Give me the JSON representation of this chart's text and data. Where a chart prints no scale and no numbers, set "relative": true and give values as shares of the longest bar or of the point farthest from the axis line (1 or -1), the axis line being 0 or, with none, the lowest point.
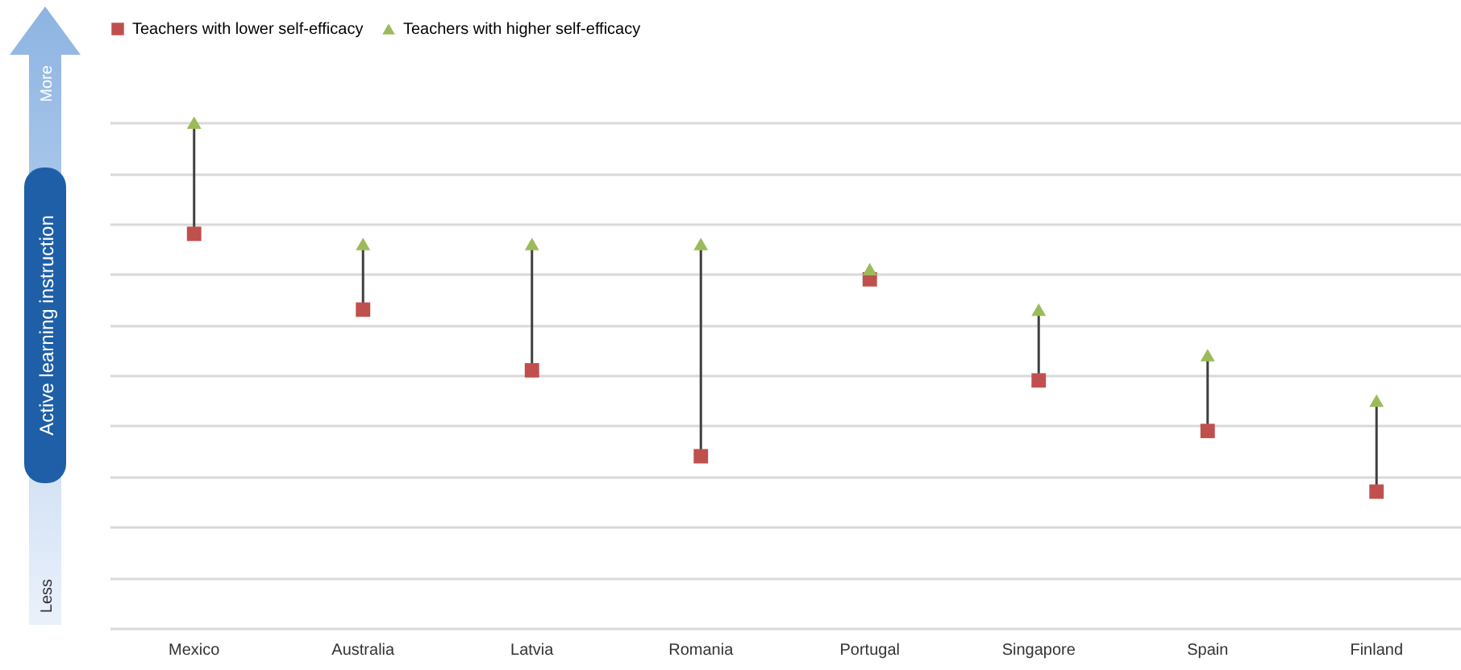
{
  "chart_data": {
    "type": "scatter",
    "relative": true,
    "ylabel": "Active learning instruction",
    "annotations": [
      "More",
      "Less"
    ],
    "categories": [
      "Mexico",
      "Australia",
      "Latvia",
      "Romania",
      "Portugal",
      "Singapore",
      "Spain",
      "Finland"
    ],
    "series": [
      {
        "name": "Teachers with lower self-efficacy",
        "color": "#c0504d",
        "marker": "square",
        "values": [
          0.78,
          0.63,
          0.51,
          0.34,
          0.69,
          0.49,
          0.39,
          0.27
        ]
      },
      {
        "name": "Teachers with higher self-efficacy",
        "color": "#9bbb59",
        "marker": "triangle",
        "values": [
          1.0,
          0.76,
          0.76,
          0.76,
          0.71,
          0.63,
          0.54,
          0.45
        ]
      }
    ],
    "grid": "y",
    "legend": "top"
  }
}
